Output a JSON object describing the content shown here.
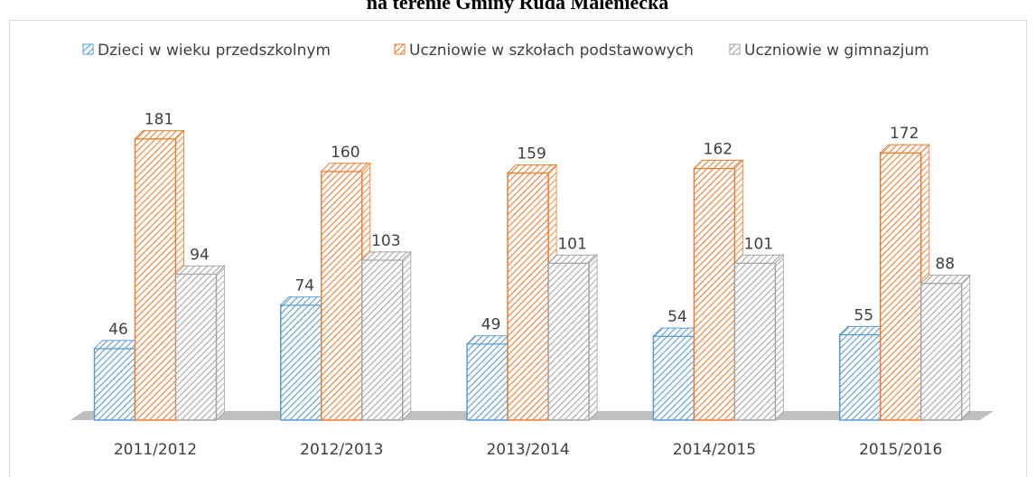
{
  "chart_data": {
    "type": "bar3d",
    "title": "na terenie Gminy Ruda Maleniecka",
    "categories": [
      "2011/2012",
      "2012/2013",
      "2013/2014",
      "2014/2015",
      "2015/2016"
    ],
    "series": [
      {
        "name": "Dzieci w wieku przedszkolnym",
        "color": "#5b9bd5",
        "values": [
          46,
          74,
          49,
          54,
          55
        ]
      },
      {
        "name": "Uczniowie w szkołach podstawowych",
        "color": "#ed7d31",
        "values": [
          181,
          160,
          159,
          162,
          172
        ]
      },
      {
        "name": "Uczniowie w gimnazjum",
        "color": "#a5a5a5",
        "values": [
          94,
          103,
          101,
          101,
          88
        ]
      }
    ],
    "legend": "top"
  }
}
